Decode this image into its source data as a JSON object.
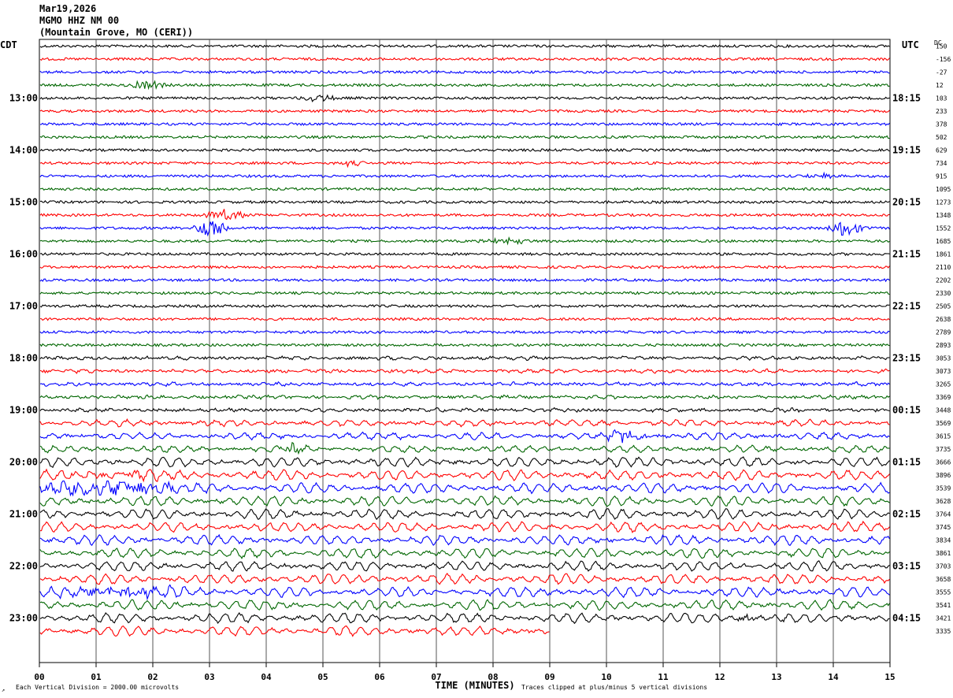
{
  "header": {
    "date": "Mar19,2026",
    "station": "MGMO HHZ NM 00",
    "location": "(Mountain Grove, MO (CERI))"
  },
  "chart_data": {
    "type": "line",
    "left_timezone": "CDT",
    "right_timezone": "UTC",
    "dc_label": "DC",
    "xlabel": "TIME (MINUTES)",
    "x_ticks": [
      "00",
      "01",
      "02",
      "03",
      "04",
      "05",
      "06",
      "07",
      "08",
      "09",
      "10",
      "11",
      "12",
      "13",
      "14",
      "15"
    ],
    "xlim": [
      0,
      15
    ],
    "left_hour_labels": [
      "13:00",
      "14:00",
      "15:00",
      "16:00",
      "17:00",
      "18:00",
      "19:00",
      "20:00",
      "21:00",
      "22:00",
      "23:00"
    ],
    "right_hour_labels": [
      "18:15",
      "19:15",
      "20:15",
      "21:15",
      "22:15",
      "23:15",
      "00:15",
      "01:15",
      "02:15",
      "03:15",
      "04:15"
    ],
    "dc_offsets": [
      "150",
      "-156",
      "-27",
      "12",
      "103",
      "233",
      "378",
      "502",
      "629",
      "734",
      "915",
      "1095",
      "1273",
      "1348",
      "1552",
      "1685",
      "1861",
      "2110",
      "2202",
      "2330",
      "2505",
      "2638",
      "2789",
      "2893",
      "3053",
      "3073",
      "3265",
      "3369",
      "3448",
      "3569",
      "3615",
      "3735",
      "3666",
      "3896",
      "3539",
      "3628",
      "3764",
      "3745",
      "3834",
      "3861",
      "3703",
      "3658",
      "3555",
      "3541",
      "3421",
      "3335"
    ],
    "trace_colors": [
      "#000000",
      "#ff0000",
      "#0000ff",
      "#006600"
    ],
    "last_trace_end_minute": 9,
    "scale_note": "Each Vertical Division = 2000.00 microvolts",
    "clip_note": "Traces clipped at plus/minus 5 vertical divisions",
    "grid": true
  }
}
